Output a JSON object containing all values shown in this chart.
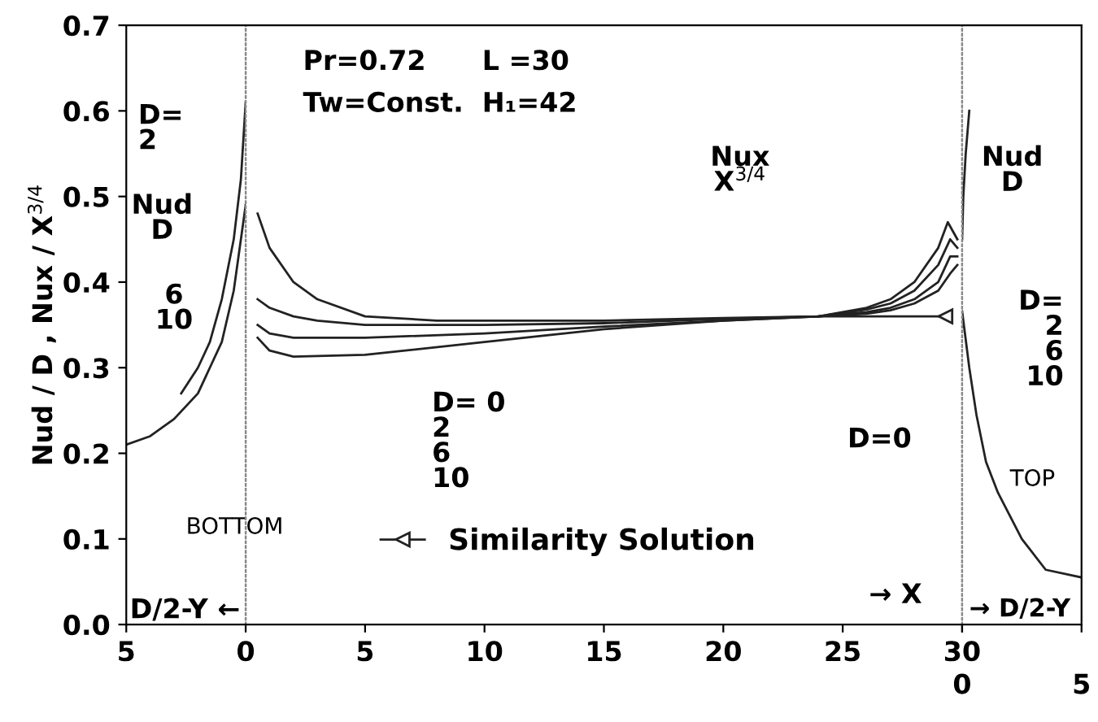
{
  "chart_data": [
    {
      "type": "line",
      "ylabel": "Nud / D , Nux / X$^{3/4}$",
      "xlim": [
        5,
        0
      ],
      "ylim": [
        0,
        0.7
      ],
      "xticks": [
        5,
        0
      ],
      "yticks": [
        {
          "value": 0,
          "label": "0.0"
        },
        0.1,
        0.2,
        0.3,
        0.4,
        0.5,
        0.6,
        0.7
      ],
      "grid": false,
      "line_style": "solid",
      "marker": "none",
      "series": [
        {
          "color": "#222222",
          "x": [
            2.7,
            2,
            1.5,
            1,
            0.5,
            0.2,
            0
          ],
          "values": [
            0.27,
            0.3,
            0.33,
            0.38,
            0.45,
            0.52,
            0.61
          ]
        },
        {
          "color": "#222222",
          "x": [
            5,
            4,
            3,
            2,
            1.5,
            1,
            0.5,
            0
          ],
          "values": [
            0.21,
            0.22,
            0.24,
            0.27,
            0.3,
            0.33,
            0.39,
            0.49
          ]
        }
      ],
      "annotations": [
        "D=\n2",
        "Nud\nD",
        "6\n10",
        "BOTTOM",
        "D/2-Y ←"
      ]
    },
    {
      "type": "line",
      "xlim": [
        0,
        30
      ],
      "ylim": [
        0,
        0.7
      ],
      "xticks": [
        5,
        10,
        15,
        20,
        25,
        30
      ],
      "tick_labels": "x",
      "grid": false,
      "legend": "bottom",
      "line_style": "solid",
      "marker": "none",
      "series": [
        {
          "color": "#222222",
          "x": [
            0.5,
            1,
            2,
            3,
            5,
            8,
            10,
            15,
            20,
            24,
            26,
            27,
            28,
            29,
            29.4,
            29.8
          ],
          "values": [
            0.48,
            0.44,
            0.4,
            0.38,
            0.36,
            0.355,
            0.355,
            0.355,
            0.358,
            0.36,
            0.37,
            0.38,
            0.4,
            0.44,
            0.47,
            0.45
          ]
        },
        {
          "color": "#222222",
          "x": [
            0.5,
            1,
            2,
            3,
            5,
            8,
            10,
            15,
            20,
            24,
            26,
            27,
            28,
            29,
            29.5,
            29.8
          ],
          "values": [
            0.38,
            0.37,
            0.36,
            0.355,
            0.35,
            0.35,
            0.35,
            0.352,
            0.357,
            0.36,
            0.368,
            0.375,
            0.39,
            0.42,
            0.45,
            0.44
          ]
        },
        {
          "color": "#222222",
          "x": [
            0.5,
            1,
            2,
            5,
            10,
            15,
            20,
            24,
            26,
            27,
            28,
            29,
            29.5,
            29.8
          ],
          "values": [
            0.35,
            0.34,
            0.335,
            0.335,
            0.34,
            0.348,
            0.355,
            0.36,
            0.365,
            0.37,
            0.38,
            0.4,
            0.43,
            0.43
          ]
        },
        {
          "color": "#222222",
          "x": [
            0.5,
            1,
            2,
            5,
            10,
            15,
            20,
            24,
            26,
            27,
            28,
            29,
            29.5,
            29.8
          ],
          "values": [
            0.335,
            0.32,
            0.313,
            0.315,
            0.33,
            0.345,
            0.355,
            0.36,
            0.363,
            0.367,
            0.375,
            0.39,
            0.41,
            0.42
          ]
        },
        {
          "name": "Similarity Solution",
          "color": "#222222",
          "marker": "triangle",
          "x": [
            24,
            29.3
          ],
          "values": [
            0.36,
            0.36
          ]
        }
      ],
      "annotations": [
        "Pr=0.72",
        "Tw=Const.",
        "L =30",
        "H₁=42",
        "Nux\nX$^{3/4}$",
        "D= 0\n2\n6\n10",
        "D=0",
        "→ X"
      ]
    },
    {
      "type": "line",
      "xlim": [
        0,
        5
      ],
      "ylim": [
        0,
        0.7
      ],
      "xticks": [
        0,
        5
      ],
      "tick_labels": "x",
      "grid": false,
      "line_style": "solid",
      "marker": "none",
      "series": [
        {
          "color": "#222222",
          "x": [
            0,
            0.05,
            0.15,
            0.3
          ],
          "values": [
            0.45,
            0.5,
            0.55,
            0.6
          ]
        },
        {
          "color": "#222222",
          "x": [
            0,
            0.3,
            0.6,
            1,
            1.5,
            2.5,
            3.5,
            5
          ],
          "values": [
            0.366,
            0.3,
            0.245,
            0.19,
            0.154,
            0.1,
            0.064,
            0.055
          ]
        }
      ],
      "annotations": [
        "Nud\nD",
        "D=\n2\n6\n10",
        "TOP",
        "→ D/2-Y"
      ]
    }
  ]
}
